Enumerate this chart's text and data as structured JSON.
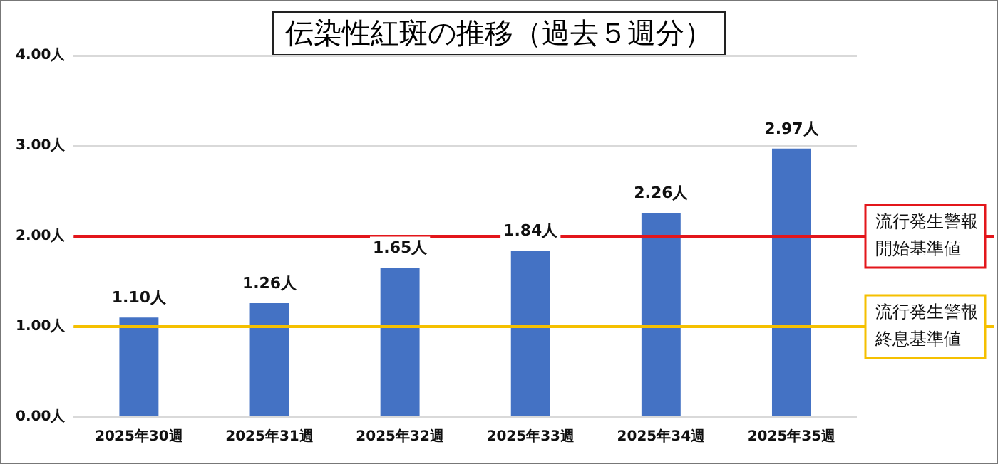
{
  "chart_data": {
    "type": "bar",
    "title": "伝染性紅斑の推移（過去５週分）",
    "categories": [
      "2025年30週",
      "2025年31週",
      "2025年32週",
      "2025年33週",
      "2025年34週",
      "2025年35週"
    ],
    "values": [
      1.1,
      1.26,
      1.65,
      1.84,
      2.26,
      2.97
    ],
    "value_labels": [
      "1.10人",
      "1.26人",
      "1.65人",
      "1.84人",
      "2.26人",
      "2.97人"
    ],
    "color": "#4472c4",
    "ylim": [
      0,
      4
    ],
    "yticks": [
      {
        "value": 0,
        "label": "0.00人"
      },
      {
        "value": 1,
        "label": "1.00人"
      },
      {
        "value": 2,
        "label": "2.00人"
      },
      {
        "value": 3,
        "label": "3.00人"
      },
      {
        "value": 4,
        "label": "4.00人"
      }
    ],
    "grid": "y",
    "legend": false,
    "ref_lines": [
      {
        "axis": "y",
        "value": 2,
        "label": "流行発生警報開始基準値",
        "color": "#e3161b"
      },
      {
        "axis": "y",
        "value": 1,
        "label": "流行発生警報終息基準値",
        "color": "#f5c000"
      }
    ]
  }
}
